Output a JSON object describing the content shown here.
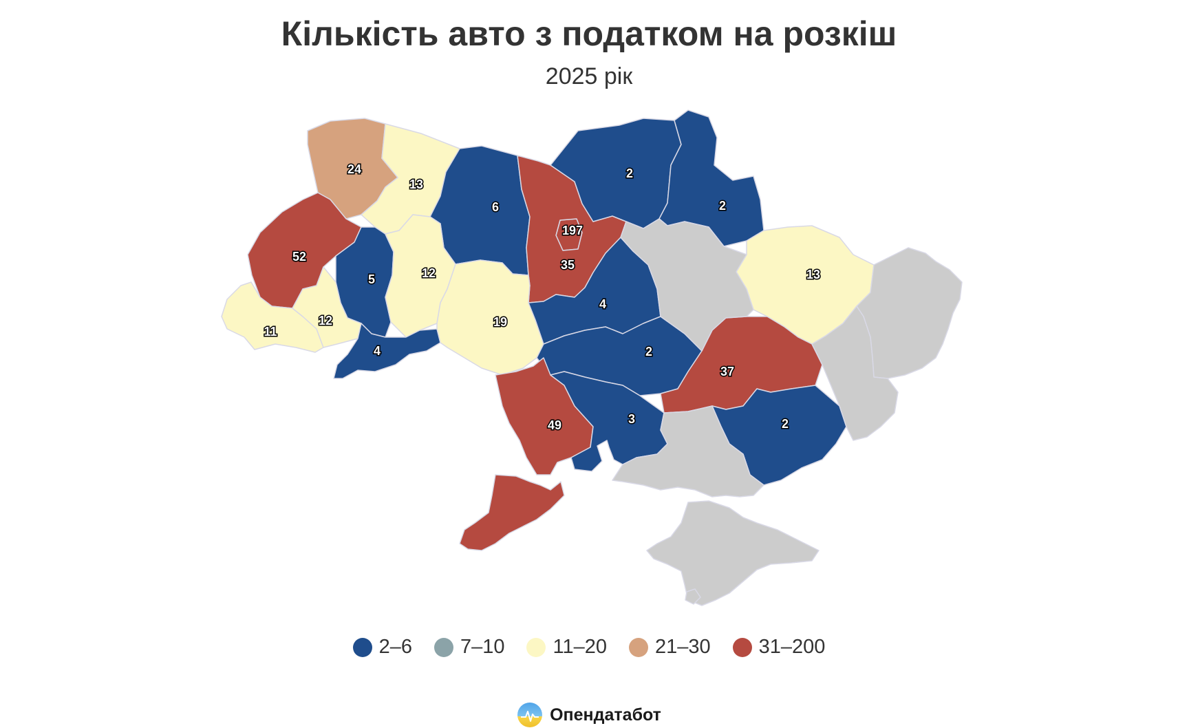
{
  "title": "Кількість авто з податком на розкіш",
  "subtitle": "2025 рік",
  "colors": {
    "c1": "#1f4d8c",
    "c2": "#8ba3a8",
    "c3": "#fcf7c4",
    "c4": "#d6a27e",
    "c5": "#b54a40",
    "nodata": "#cccccc"
  },
  "legend": [
    {
      "label": "2–6",
      "class": "c1"
    },
    {
      "label": "7–10",
      "class": "c2"
    },
    {
      "label": "11–20",
      "class": "c3"
    },
    {
      "label": "21–30",
      "class": "c4"
    },
    {
      "label": "31–200",
      "class": "c5"
    }
  ],
  "regions": [
    {
      "value": "24",
      "class": "c4"
    },
    {
      "value": "13",
      "class": "c3"
    },
    {
      "value": "6",
      "class": "c1"
    },
    {
      "value": "197",
      "class": "c5"
    },
    {
      "value": "35",
      "class": "c5"
    },
    {
      "value": "2",
      "class": "c1"
    },
    {
      "value": "2",
      "class": "c1"
    },
    {
      "value": "52",
      "class": "c5"
    },
    {
      "value": "5",
      "class": "c1"
    },
    {
      "value": "12",
      "class": "c3"
    },
    {
      "value": "11",
      "class": "c3"
    },
    {
      "value": "12",
      "class": "c3"
    },
    {
      "value": "4",
      "class": "c1"
    },
    {
      "value": "19",
      "class": "c3"
    },
    {
      "value": "4",
      "class": "c1"
    },
    {
      "value": "2",
      "class": "c1"
    },
    {
      "value": "13",
      "class": "c3"
    },
    {
      "value": "37",
      "class": "c5"
    },
    {
      "value": "49",
      "class": "c5"
    },
    {
      "value": "3",
      "class": "c1"
    },
    {
      "value": "2",
      "class": "c1"
    },
    {
      "value": "",
      "class": "nodata"
    },
    {
      "value": "",
      "class": "nodata"
    },
    {
      "value": "",
      "class": "nodata"
    },
    {
      "value": "",
      "class": "nodata"
    },
    {
      "value": "",
      "class": "nodata"
    },
    {
      "value": "",
      "class": "nodata"
    }
  ],
  "brand": {
    "name": "Опендатабот",
    "icon": "opendatabot-logo-icon"
  }
}
